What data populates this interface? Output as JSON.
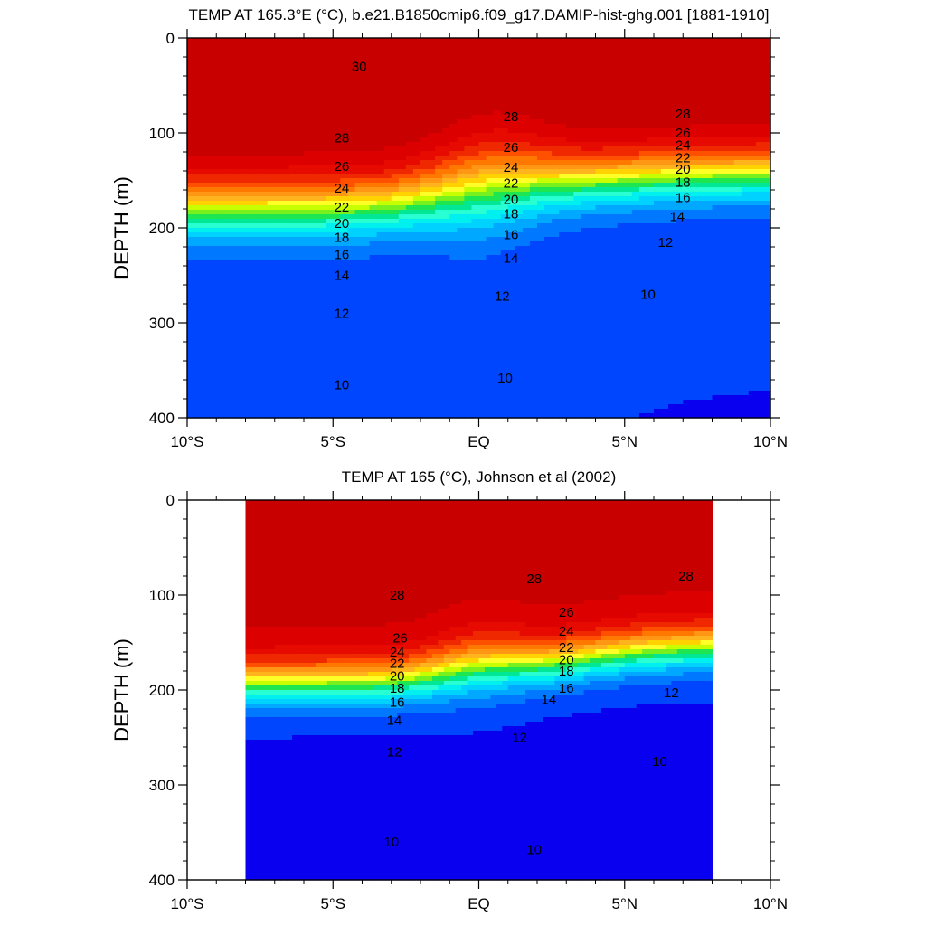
{
  "chart_data": [
    {
      "type": "contour",
      "title": "TEMP AT 165.3°E (°C), b.e21.B1850cmip6.f09_g17.DAMIP-hist-ghg.001 [1881-1910]",
      "ylabel": "DEPTH (m)",
      "xlabel": "",
      "xlim": [
        -10,
        10
      ],
      "ylim": [
        400,
        0
      ],
      "y_inverted": true,
      "x_ticks": [
        -10,
        -5,
        0,
        5,
        10
      ],
      "x_tick_labels": [
        "10°S",
        "5°S",
        "EQ",
        "5°N",
        "10°N"
      ],
      "y_ticks": [
        0,
        100,
        200,
        300,
        400
      ],
      "y_tick_labels": [
        "0",
        "100",
        "200",
        "300",
        "400"
      ],
      "data_extent_x": [
        -10,
        10
      ],
      "contour_levels": [
        9,
        10,
        11,
        12,
        13,
        14,
        15,
        16,
        17,
        18,
        19,
        20,
        21,
        22,
        23,
        24,
        25,
        26,
        27,
        28,
        29,
        30
      ],
      "contour_labels": [
        {
          "text": "30",
          "x": -4.1,
          "y": 30
        },
        {
          "text": "28",
          "x": -4.7,
          "y": 105
        },
        {
          "text": "26",
          "x": -4.7,
          "y": 135
        },
        {
          "text": "24",
          "x": -4.7,
          "y": 158
        },
        {
          "text": "22",
          "x": -4.7,
          "y": 178
        },
        {
          "text": "20",
          "x": -4.7,
          "y": 195
        },
        {
          "text": "18",
          "x": -4.7,
          "y": 210
        },
        {
          "text": "16",
          "x": -4.7,
          "y": 228
        },
        {
          "text": "14",
          "x": -4.7,
          "y": 250
        },
        {
          "text": "12",
          "x": -4.7,
          "y": 290
        },
        {
          "text": "10",
          "x": -4.7,
          "y": 365
        },
        {
          "text": "28",
          "x": 1.1,
          "y": 83
        },
        {
          "text": "26",
          "x": 1.1,
          "y": 115
        },
        {
          "text": "24",
          "x": 1.1,
          "y": 136
        },
        {
          "text": "22",
          "x": 1.1,
          "y": 153
        },
        {
          "text": "20",
          "x": 1.1,
          "y": 170
        },
        {
          "text": "18",
          "x": 1.1,
          "y": 185
        },
        {
          "text": "16",
          "x": 1.1,
          "y": 207
        },
        {
          "text": "14",
          "x": 1.1,
          "y": 232
        },
        {
          "text": "12",
          "x": 0.8,
          "y": 272
        },
        {
          "text": "10",
          "x": 0.9,
          "y": 358
        },
        {
          "text": "28",
          "x": 7.0,
          "y": 80
        },
        {
          "text": "26",
          "x": 7.0,
          "y": 100
        },
        {
          "text": "24",
          "x": 7.0,
          "y": 113
        },
        {
          "text": "22",
          "x": 7.0,
          "y": 126
        },
        {
          "text": "20",
          "x": 7.0,
          "y": 138
        },
        {
          "text": "18",
          "x": 7.0,
          "y": 152
        },
        {
          "text": "16",
          "x": 7.0,
          "y": 168
        },
        {
          "text": "14",
          "x": 6.8,
          "y": 188
        },
        {
          "text": "12",
          "x": 6.4,
          "y": 215
        },
        {
          "text": "10",
          "x": 5.8,
          "y": 270
        }
      ]
    },
    {
      "type": "contour",
      "title": "TEMP AT 165 (°C), Johnson et al (2002)",
      "ylabel": "DEPTH (m)",
      "xlabel": "",
      "xlim": [
        -10,
        10
      ],
      "ylim": [
        400,
        0
      ],
      "y_inverted": true,
      "x_ticks": [
        -10,
        -5,
        0,
        5,
        10
      ],
      "x_tick_labels": [
        "10°S",
        "5°S",
        "EQ",
        "5°N",
        "10°N"
      ],
      "y_ticks": [
        0,
        100,
        200,
        300,
        400
      ],
      "y_tick_labels": [
        "0",
        "100",
        "200",
        "300",
        "400"
      ],
      "data_extent_x": [
        -8,
        8
      ],
      "contour_levels": [
        9,
        10,
        11,
        12,
        13,
        14,
        15,
        16,
        17,
        18,
        19,
        20,
        21,
        22,
        23,
        24,
        25,
        26,
        27,
        28,
        29
      ],
      "contour_labels": [
        {
          "text": "28",
          "x": -2.8,
          "y": 100
        },
        {
          "text": "26",
          "x": -2.7,
          "y": 145
        },
        {
          "text": "24",
          "x": -2.8,
          "y": 160
        },
        {
          "text": "22",
          "x": -2.8,
          "y": 172
        },
        {
          "text": "20",
          "x": -2.8,
          "y": 185
        },
        {
          "text": "18",
          "x": -2.8,
          "y": 198
        },
        {
          "text": "16",
          "x": -2.8,
          "y": 213
        },
        {
          "text": "14",
          "x": -2.9,
          "y": 232
        },
        {
          "text": "12",
          "x": -2.9,
          "y": 265
        },
        {
          "text": "10",
          "x": -3.0,
          "y": 360
        },
        {
          "text": "28",
          "x": 1.9,
          "y": 83
        },
        {
          "text": "26",
          "x": 3.0,
          "y": 118
        },
        {
          "text": "24",
          "x": 3.0,
          "y": 138
        },
        {
          "text": "22",
          "x": 3.0,
          "y": 155
        },
        {
          "text": "20",
          "x": 3.0,
          "y": 168
        },
        {
          "text": "18",
          "x": 3.0,
          "y": 180
        },
        {
          "text": "16",
          "x": 3.0,
          "y": 198
        },
        {
          "text": "14",
          "x": 2.4,
          "y": 210
        },
        {
          "text": "12",
          "x": 1.4,
          "y": 250
        },
        {
          "text": "10",
          "x": 1.9,
          "y": 368
        },
        {
          "text": "28",
          "x": 7.1,
          "y": 80
        },
        {
          "text": "12",
          "x": 6.6,
          "y": 203
        },
        {
          "text": "10",
          "x": 6.2,
          "y": 275
        }
      ]
    }
  ],
  "colors": {
    "fill_scale": [
      "#4b00c8",
      "#0a00f0",
      "#0046ff",
      "#0078ff",
      "#00a8ff",
      "#00d2ff",
      "#00f0f0",
      "#28ffd2",
      "#00e896",
      "#1ee650",
      "#78f01e",
      "#c8ff00",
      "#ffff28",
      "#ffd200",
      "#ffb41e",
      "#ff9614",
      "#ff7800",
      "#ff5000",
      "#f02800",
      "#e60a00",
      "#dc0000",
      "#c80000"
    ]
  }
}
